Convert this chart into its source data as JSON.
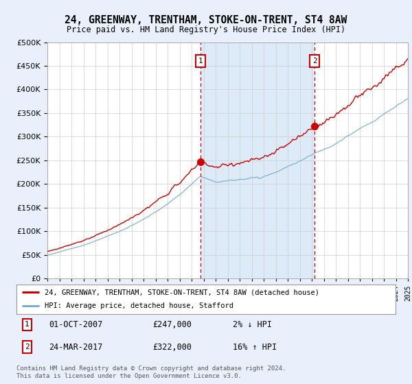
{
  "title": "24, GREENWAY, TRENTHAM, STOKE-ON-TRENT, ST4 8AW",
  "subtitle": "Price paid vs. HM Land Registry's House Price Index (HPI)",
  "legend_line1": "24, GREENWAY, TRENTHAM, STOKE-ON-TRENT, ST4 8AW (detached house)",
  "legend_line2": "HPI: Average price, detached house, Stafford",
  "annotation1_date": "01-OCT-2007",
  "annotation1_price": "£247,000",
  "annotation1_hpi": "2% ↓ HPI",
  "annotation2_date": "24-MAR-2017",
  "annotation2_price": "£322,000",
  "annotation2_hpi": "16% ↑ HPI",
  "footer": "Contains HM Land Registry data © Crown copyright and database right 2024.\nThis data is licensed under the Open Government Licence v3.0.",
  "ylim": [
    0,
    500000
  ],
  "yticks": [
    0,
    50000,
    100000,
    150000,
    200000,
    250000,
    300000,
    350000,
    400000,
    450000,
    500000
  ],
  "bg_color": "#eaf0fb",
  "plot_bg_color": "#ffffff",
  "shade_color": "#ddeaf8",
  "line_color_red": "#cc0000",
  "line_color_blue": "#7aadcc",
  "vline_color": "#cc0000",
  "annotation_box_color": "#cc0000",
  "sale1_x": 2007.75,
  "sale1_y": 247000,
  "sale2_x": 2017.23,
  "sale2_y": 322000,
  "xmin": 1995,
  "xmax": 2025
}
